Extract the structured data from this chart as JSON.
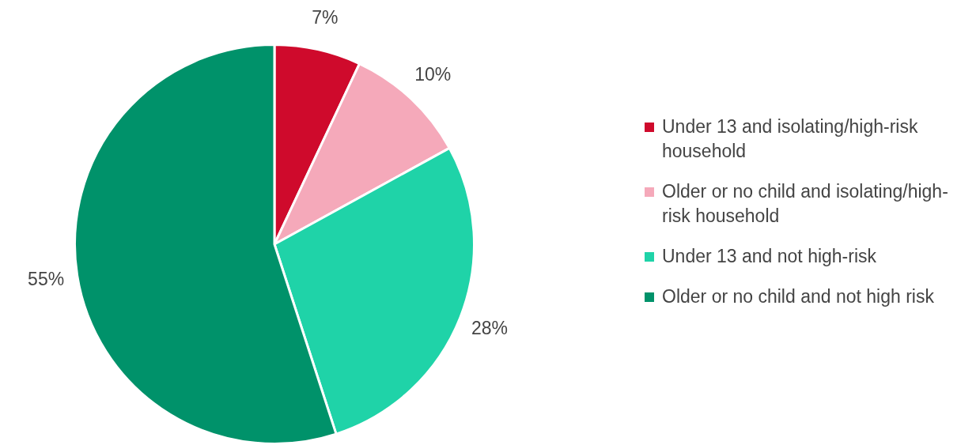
{
  "chart_data": {
    "type": "pie",
    "categories": [
      "Under 13 and isolating/high-risk household",
      "Older or no child and isolating/high-risk household",
      "Under 13 and not high-risk",
      "Older or no child and not high risk"
    ],
    "values": [
      7,
      10,
      28,
      55
    ],
    "colors": [
      "#cf0a2c",
      "#f5a9ba",
      "#1fd3a8",
      "#00926a"
    ],
    "value_labels": [
      "7%",
      "10%",
      "28%",
      "55%"
    ],
    "legend": "right"
  }
}
